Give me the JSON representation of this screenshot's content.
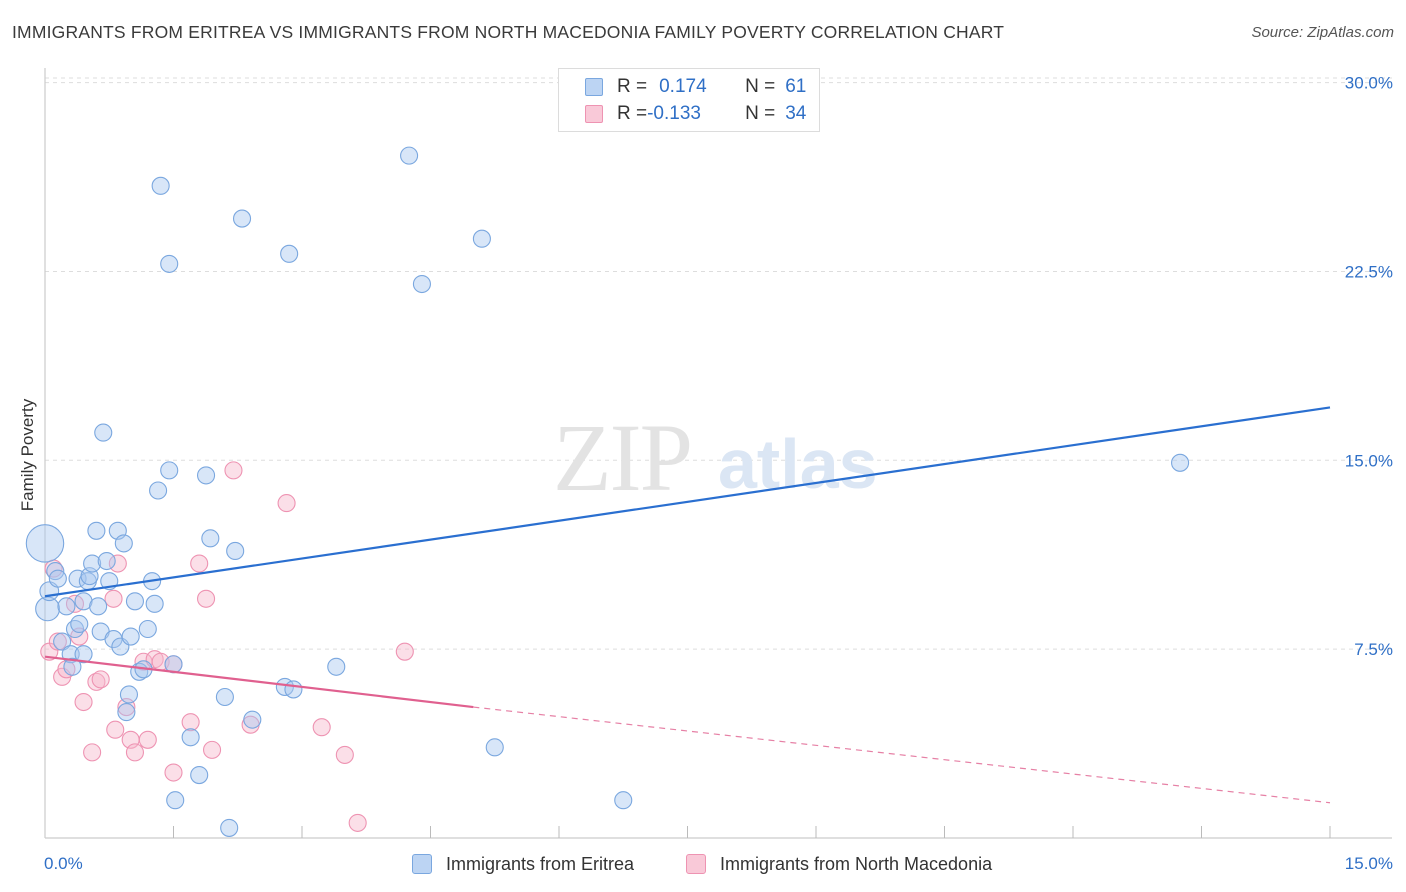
{
  "title": "IMMIGRANTS FROM ERITREA VS IMMIGRANTS FROM NORTH MACEDONIA FAMILY POVERTY CORRELATION CHART",
  "source": "Source: ZipAtlas.com",
  "watermark": {
    "zip": "ZIP",
    "atlas": "atlas"
  },
  "colors": {
    "blue_fill": "#a9c8ef",
    "blue_stroke": "#7aa7df",
    "blue_line": "#2a6fd0",
    "pink_fill": "#f6b8cc",
    "pink_stroke": "#ee93b2",
    "pink_line": "#e0608f",
    "grid": "#dddddd",
    "tick_text": "#2f6fc6"
  },
  "legend": {
    "rows": [
      {
        "r_label": "R = ",
        "r_value": "0.174",
        "n_label": "N = ",
        "n_value": "61",
        "series": "blue"
      },
      {
        "r_label": "R = ",
        "r_value": "-0.133",
        "n_label": "N = ",
        "n_value": "34",
        "series": "pink"
      }
    ]
  },
  "chart_data": {
    "type": "scatter",
    "title": "IMMIGRANTS FROM ERITREA VS IMMIGRANTS FROM NORTH MACEDONIA FAMILY POVERTY CORRELATION CHART",
    "xlabel": "",
    "ylabel": "Family Poverty",
    "xlim": [
      0,
      15
    ],
    "ylim": [
      0,
      30.5
    ],
    "x_tick_labels": [
      "0.0%",
      "15.0%"
    ],
    "y_ticks": [
      7.5,
      15.0,
      22.5,
      30.0
    ],
    "y_tick_labels": [
      "7.5%",
      "15.0%",
      "22.5%",
      "30.0%"
    ],
    "grid": true,
    "legend_position": "bottom",
    "series": [
      {
        "name": "Immigrants from Eritrea",
        "color": "blue",
        "trend": {
          "x0": 0,
          "y0": 9.6,
          "x1": 15,
          "y1": 17.1
        },
        "points": [
          [
            0.0,
            11.7,
            2.2
          ],
          [
            0.03,
            9.1,
            1.4
          ],
          [
            0.05,
            9.8,
            1.1
          ],
          [
            0.12,
            10.6,
            1.0
          ],
          [
            0.15,
            10.3,
            1.0
          ],
          [
            0.2,
            7.8,
            1.0
          ],
          [
            0.25,
            9.2,
            1.0
          ],
          [
            0.3,
            7.3,
            1.0
          ],
          [
            0.32,
            6.8,
            1.0
          ],
          [
            0.35,
            8.3,
            1.0
          ],
          [
            0.38,
            10.3,
            1.0
          ],
          [
            0.4,
            8.5,
            1.0
          ],
          [
            0.45,
            9.4,
            1.0
          ],
          [
            0.45,
            7.3,
            1.0
          ],
          [
            0.5,
            10.2,
            1.0
          ],
          [
            0.52,
            10.4,
            1.0
          ],
          [
            0.55,
            10.9,
            1.0
          ],
          [
            0.6,
            12.2,
            1.0
          ],
          [
            0.62,
            9.2,
            1.0
          ],
          [
            0.65,
            8.2,
            1.0
          ],
          [
            0.68,
            16.1,
            1.0
          ],
          [
            0.72,
            11.0,
            1.0
          ],
          [
            0.75,
            10.2,
            1.0
          ],
          [
            0.8,
            7.9,
            1.0
          ],
          [
            0.85,
            12.2,
            1.0
          ],
          [
            0.88,
            7.6,
            1.0
          ],
          [
            0.92,
            11.7,
            1.0
          ],
          [
            0.95,
            5.0,
            1.0
          ],
          [
            0.98,
            5.7,
            1.0
          ],
          [
            1.0,
            8.0,
            1.0
          ],
          [
            1.05,
            9.4,
            1.0
          ],
          [
            1.1,
            6.6,
            1.0
          ],
          [
            1.15,
            6.7,
            1.0
          ],
          [
            1.2,
            8.3,
            1.0
          ],
          [
            1.25,
            10.2,
            1.0
          ],
          [
            1.28,
            9.3,
            1.0
          ],
          [
            1.32,
            13.8,
            1.0
          ],
          [
            1.35,
            25.9,
            1.0
          ],
          [
            1.45,
            22.8,
            1.0
          ],
          [
            1.45,
            14.6,
            1.0
          ],
          [
            1.5,
            6.9,
            1.0
          ],
          [
            1.52,
            1.5,
            1.0
          ],
          [
            1.7,
            4.0,
            1.0
          ],
          [
            1.8,
            2.5,
            1.0
          ],
          [
            1.88,
            14.4,
            1.0
          ],
          [
            1.93,
            11.9,
            1.0
          ],
          [
            2.1,
            5.6,
            1.0
          ],
          [
            2.15,
            0.4,
            1.0
          ],
          [
            2.22,
            11.4,
            1.0
          ],
          [
            2.3,
            24.6,
            1.0
          ],
          [
            2.42,
            4.7,
            1.0
          ],
          [
            2.8,
            6.0,
            1.0
          ],
          [
            2.85,
            23.2,
            1.0
          ],
          [
            2.9,
            5.9,
            1.0
          ],
          [
            3.4,
            6.8,
            1.0
          ],
          [
            4.25,
            27.1,
            1.0
          ],
          [
            4.4,
            22.0,
            1.0
          ],
          [
            5.1,
            23.8,
            1.0
          ],
          [
            5.25,
            3.6,
            1.0
          ],
          [
            6.75,
            1.5,
            1.0
          ],
          [
            13.25,
            14.9,
            1.0
          ]
        ]
      },
      {
        "name": "Immigrants from North Macedonia",
        "color": "pink",
        "trend": {
          "x0": 0,
          "y0": 7.2,
          "x1": 5.0,
          "y1": 5.2,
          "dash_x1": 15,
          "dash_y1": 1.4
        },
        "points": [
          [
            0.05,
            7.4,
            1.0
          ],
          [
            0.1,
            10.7,
            1.0
          ],
          [
            0.15,
            7.8,
            1.0
          ],
          [
            0.2,
            6.4,
            1.0
          ],
          [
            0.25,
            6.7,
            1.0
          ],
          [
            0.35,
            9.3,
            1.0
          ],
          [
            0.4,
            8.0,
            1.0
          ],
          [
            0.45,
            5.4,
            1.0
          ],
          [
            0.55,
            3.4,
            1.0
          ],
          [
            0.6,
            6.2,
            1.0
          ],
          [
            0.65,
            6.3,
            1.0
          ],
          [
            0.8,
            9.5,
            1.0
          ],
          [
            0.82,
            4.3,
            1.0
          ],
          [
            0.85,
            10.9,
            1.0
          ],
          [
            0.95,
            5.2,
            1.0
          ],
          [
            1.0,
            3.9,
            1.0
          ],
          [
            1.05,
            3.4,
            1.0
          ],
          [
            1.15,
            7.0,
            1.0
          ],
          [
            1.2,
            3.9,
            1.0
          ],
          [
            1.28,
            7.1,
            1.0
          ],
          [
            1.35,
            7.0,
            1.0
          ],
          [
            1.5,
            2.6,
            1.0
          ],
          [
            1.5,
            6.9,
            1.0
          ],
          [
            1.7,
            4.6,
            1.0
          ],
          [
            1.8,
            10.9,
            1.0
          ],
          [
            1.88,
            9.5,
            1.0
          ],
          [
            1.95,
            3.5,
            1.0
          ],
          [
            2.2,
            14.6,
            1.0
          ],
          [
            2.4,
            4.5,
            1.0
          ],
          [
            2.82,
            13.3,
            1.0
          ],
          [
            3.23,
            4.4,
            1.0
          ],
          [
            3.5,
            3.3,
            1.0
          ],
          [
            3.65,
            0.6,
            1.0
          ],
          [
            4.2,
            7.4,
            1.0
          ]
        ]
      }
    ]
  }
}
